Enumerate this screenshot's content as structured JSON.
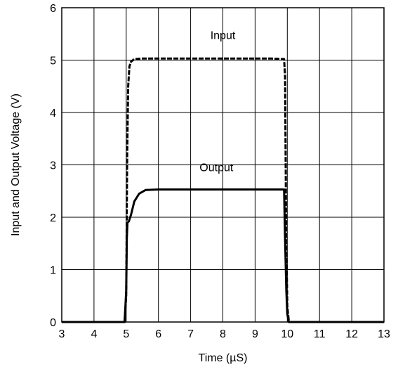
{
  "chart_data": {
    "type": "line",
    "xlabel": "Time (µS)",
    "ylabel": "Input and Output Voltage (V)",
    "xlim": [
      3,
      13
    ],
    "ylim": [
      0,
      6
    ],
    "x_ticks": [
      "3",
      "4",
      "5",
      "6",
      "7",
      "8",
      "9",
      "10",
      "11",
      "12",
      "13"
    ],
    "y_ticks": [
      "0",
      "1",
      "2",
      "3",
      "4",
      "5",
      "6"
    ],
    "grid": true,
    "series": [
      {
        "name": "Input",
        "style": "dashed",
        "x": [
          3.0,
          4.95,
          5.0,
          5.03,
          5.06,
          5.1,
          5.15,
          5.25,
          5.5,
          7.0,
          8.5,
          9.5,
          9.9,
          9.93,
          9.96,
          10.0,
          10.05,
          10.2,
          13.0
        ],
        "y": [
          0.0,
          0.0,
          0.5,
          3.2,
          4.5,
          4.88,
          4.97,
          5.02,
          5.03,
          5.03,
          5.03,
          5.03,
          5.02,
          4.7,
          2.0,
          0.3,
          0.0,
          0.0,
          0.0
        ]
      },
      {
        "name": "Output",
        "style": "solid",
        "x": [
          3.0,
          4.95,
          5.0,
          5.02,
          5.04,
          5.08,
          5.15,
          5.25,
          5.4,
          5.6,
          6.0,
          7.0,
          8.0,
          9.0,
          9.9,
          9.93,
          9.97,
          10.0,
          10.05,
          10.2,
          13.0
        ],
        "y": [
          0.0,
          0.0,
          0.6,
          1.6,
          1.9,
          1.92,
          2.05,
          2.3,
          2.45,
          2.52,
          2.53,
          2.53,
          2.53,
          2.53,
          2.53,
          1.6,
          0.6,
          0.15,
          0.0,
          0.0,
          0.0
        ]
      }
    ],
    "annotations": [
      {
        "text": "Input",
        "x": 8.0,
        "y": 5.4
      },
      {
        "text": "Output",
        "x": 7.8,
        "y": 2.88
      }
    ]
  }
}
